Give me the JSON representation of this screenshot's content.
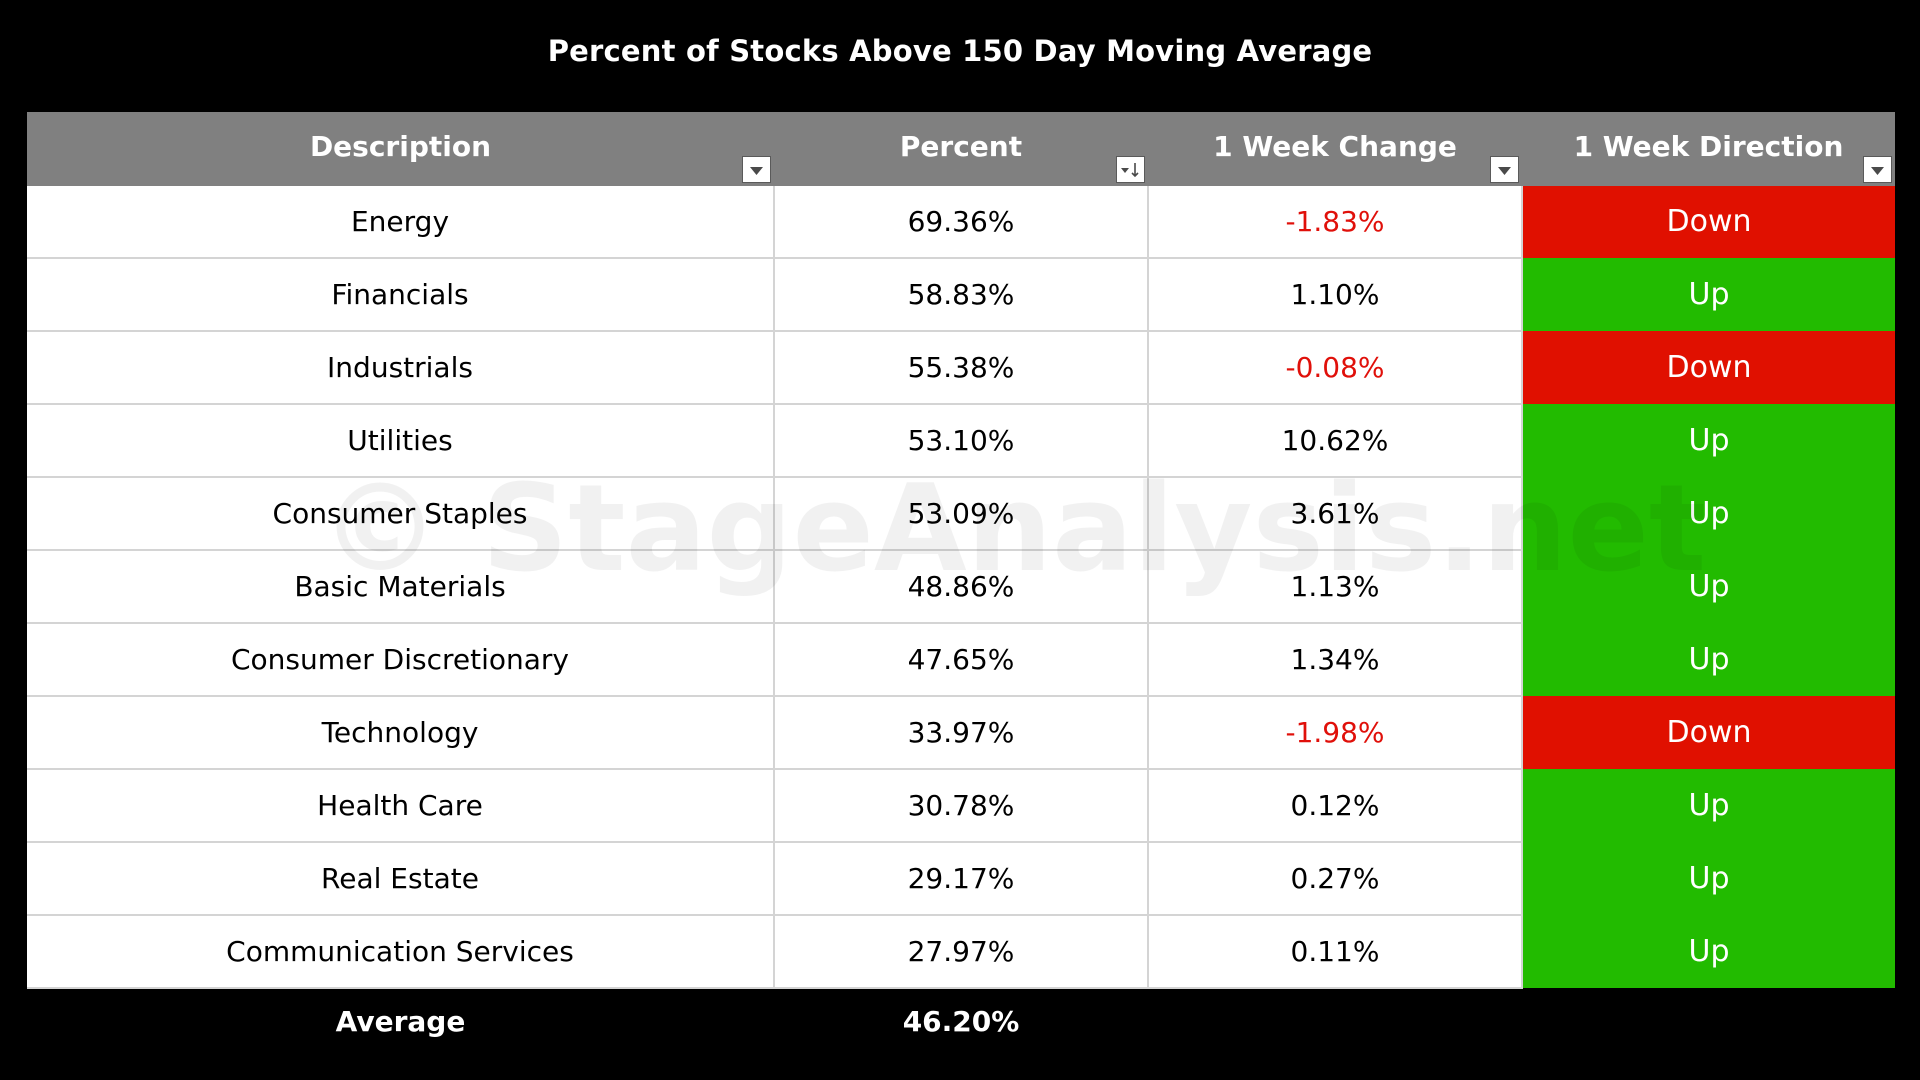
{
  "chart_data": {
    "type": "table",
    "title": "Percent of Stocks Above 150 Day Moving Average",
    "watermark": "© StageAnalysis.net",
    "columns": [
      "Description",
      "Percent",
      "1 Week Change",
      "1 Week Direction"
    ],
    "column_filters": [
      "dropdown",
      "sort-descending",
      "dropdown",
      "dropdown"
    ],
    "rows": [
      {
        "description": "Energy",
        "percent": "69.36%",
        "change": "-1.83%",
        "direction": "Down"
      },
      {
        "description": "Financials",
        "percent": "58.83%",
        "change": "1.10%",
        "direction": "Up"
      },
      {
        "description": "Industrials",
        "percent": "55.38%",
        "change": "-0.08%",
        "direction": "Down"
      },
      {
        "description": "Utilities",
        "percent": "53.10%",
        "change": "10.62%",
        "direction": "Up"
      },
      {
        "description": "Consumer Staples",
        "percent": "53.09%",
        "change": "3.61%",
        "direction": "Up"
      },
      {
        "description": "Basic Materials",
        "percent": "48.86%",
        "change": "1.13%",
        "direction": "Up"
      },
      {
        "description": "Consumer Discretionary",
        "percent": "47.65%",
        "change": "1.34%",
        "direction": "Up"
      },
      {
        "description": "Technology",
        "percent": "33.97%",
        "change": "-1.98%",
        "direction": "Down"
      },
      {
        "description": "Health Care",
        "percent": "30.78%",
        "change": "0.12%",
        "direction": "Up"
      },
      {
        "description": "Real Estate",
        "percent": "29.17%",
        "change": "0.27%",
        "direction": "Up"
      },
      {
        "description": "Communication Services",
        "percent": "27.97%",
        "change": "0.11%",
        "direction": "Up"
      }
    ],
    "footer": {
      "label": "Average",
      "percent": "46.20%"
    }
  },
  "colors": {
    "background": "#000000",
    "header_bg": "#808080",
    "up": "#22bb00",
    "down": "#e01000",
    "negative_text": "#e0100a"
  }
}
